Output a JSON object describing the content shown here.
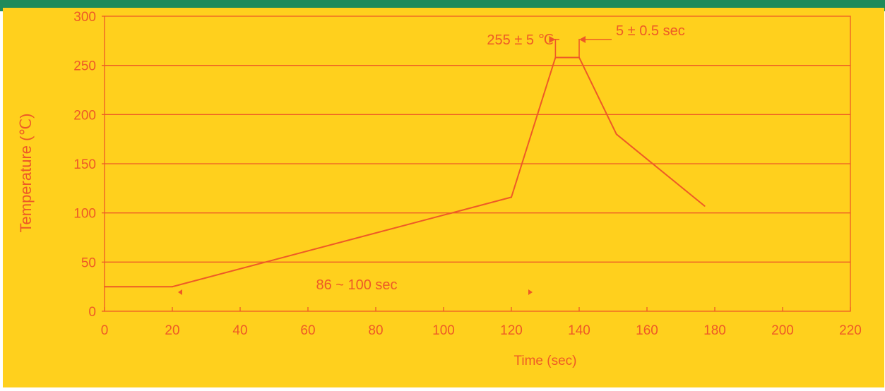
{
  "colors": {
    "background": "#ffd01d",
    "line": "#ee5a26",
    "text": "#ee5a26",
    "top_bar": "#1e8a5a"
  },
  "chart_data": {
    "type": "line",
    "title": "",
    "xlabel": "Time  (sec)",
    "ylabel": "Temperature (℃)",
    "xlim": [
      0,
      220
    ],
    "ylim": [
      0,
      300
    ],
    "x_ticks": [
      0,
      20,
      40,
      60,
      80,
      100,
      120,
      140,
      160,
      180,
      200,
      220
    ],
    "y_ticks": [
      0,
      50,
      100,
      150,
      200,
      250,
      300
    ],
    "grid": "horizontal",
    "series": [
      {
        "x": [
          0,
          20,
          120,
          133,
          140,
          151,
          177
        ],
        "y": [
          25,
          25,
          116,
          258,
          258,
          180,
          107
        ]
      }
    ],
    "annotations": [
      {
        "text": "86 ~ 100 sec"
      },
      {
        "text": "255 ± 5 ℃"
      },
      {
        "text": "5 ± 0.5 sec"
      }
    ]
  }
}
